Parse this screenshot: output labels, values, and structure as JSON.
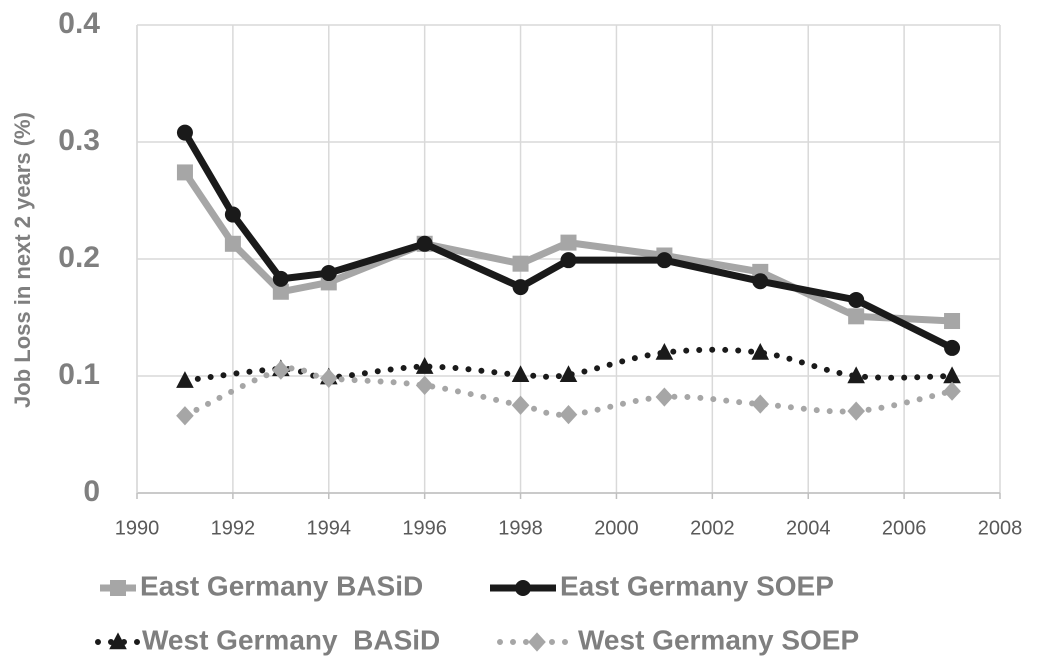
{
  "chart_data": {
    "type": "line",
    "y_label": "Job Loss in next 2 years (%)",
    "xlim": [
      1990,
      2008
    ],
    "xticks": [
      1990,
      1992,
      1994,
      1996,
      1998,
      2000,
      2002,
      2004,
      2006,
      2008
    ],
    "ylim": [
      0,
      0.4
    ],
    "yticks": [
      0,
      0.1,
      0.2,
      0.3,
      0.4
    ],
    "grid": true,
    "series": [
      {
        "name": "East Germany BASiD",
        "color": "#a6a6a6",
        "marker": "square",
        "line": "solid",
        "x": [
          1991,
          1992,
          1993,
          1994,
          1996,
          1998,
          1999,
          2001,
          2003,
          2005,
          2007
        ],
        "values": [
          0.274,
          0.213,
          0.172,
          0.18,
          0.213,
          0.196,
          0.214,
          0.203,
          0.189,
          0.151,
          0.147
        ]
      },
      {
        "name": "East Germany SOEP",
        "color": "#1a1a1a",
        "marker": "circle",
        "line": "solid",
        "x": [
          1991,
          1992,
          1993,
          1994,
          1996,
          1998,
          1999,
          2001,
          2003,
          2005,
          2007
        ],
        "values": [
          0.308,
          0.238,
          0.183,
          0.188,
          0.213,
          0.176,
          0.199,
          0.199,
          0.181,
          0.165,
          0.124
        ]
      },
      {
        "name": "West Germany  BASiD",
        "color": "#1a1a1a",
        "marker": "triangle",
        "line": "dotted",
        "x": [
          1991,
          1993,
          1994,
          1996,
          1998,
          1999,
          2001,
          2003,
          2005,
          2007
        ],
        "values": [
          0.096,
          0.106,
          0.099,
          0.108,
          0.101,
          0.101,
          0.12,
          0.12,
          0.1,
          0.1
        ]
      },
      {
        "name": "West Germany SOEP",
        "color": "#a6a6a6",
        "marker": "diamond",
        "line": "dotted",
        "x": [
          1991,
          1993,
          1994,
          1996,
          1998,
          1999,
          2001,
          2003,
          2005,
          2007
        ],
        "values": [
          0.066,
          0.105,
          0.098,
          0.092,
          0.075,
          0.067,
          0.082,
          0.076,
          0.07,
          0.087
        ]
      }
    ]
  }
}
